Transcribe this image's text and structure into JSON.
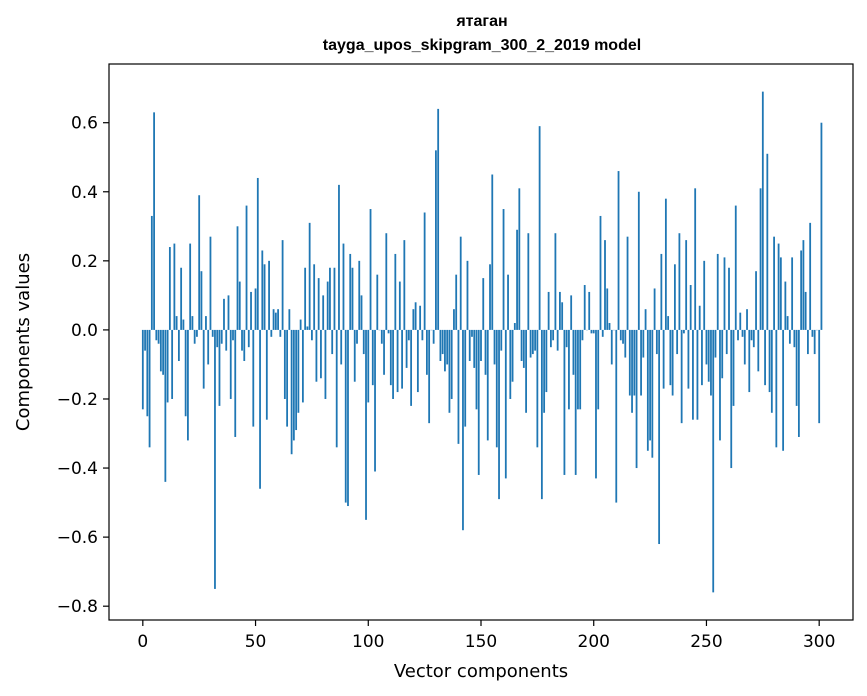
{
  "chart_data": {
    "type": "bar",
    "title": "ятаган",
    "subtitle": "tayga_upos_skipgram_300_2_2019 model",
    "xlabel": "Vector components",
    "ylabel": "Components values",
    "xlim": [
      -15,
      315
    ],
    "ylim": [
      -0.84,
      0.77
    ],
    "xticks": [
      0,
      50,
      100,
      150,
      200,
      250,
      300
    ],
    "xtick_labels": [
      "0",
      "50",
      "100",
      "150",
      "200",
      "250",
      "300"
    ],
    "yticks": [
      -0.8,
      -0.6,
      -0.4,
      -0.2,
      0.0,
      0.2,
      0.4,
      0.6
    ],
    "ytick_labels": [
      "−0.8",
      "−0.6",
      "−0.4",
      "−0.2",
      "0.0",
      "0.2",
      "0.4",
      "0.6"
    ],
    "bar_color": "#1f77b4",
    "values": [
      -0.23,
      -0.06,
      -0.25,
      -0.34,
      0.33,
      0.63,
      -0.03,
      -0.04,
      -0.12,
      -0.13,
      -0.44,
      -0.21,
      0.24,
      -0.2,
      0.25,
      0.04,
      -0.09,
      0.18,
      0.03,
      -0.25,
      -0.32,
      0.25,
      0.04,
      -0.04,
      -0.02,
      0.39,
      0.17,
      -0.17,
      0.04,
      -0.1,
      0.27,
      -0.02,
      -0.75,
      -0.05,
      -0.22,
      -0.04,
      0.09,
      -0.06,
      0.1,
      -0.2,
      -0.03,
      -0.31,
      0.3,
      0.14,
      -0.06,
      -0.09,
      0.36,
      -0.05,
      0.11,
      -0.28,
      0.12,
      0.44,
      -0.46,
      0.23,
      0.19,
      -0.26,
      0.2,
      -0.02,
      0.06,
      0.05,
      0.06,
      -0.02,
      0.26,
      -0.2,
      -0.28,
      0.06,
      -0.36,
      -0.32,
      -0.29,
      -0.24,
      0.03,
      -0.21,
      0.18,
      0.01,
      0.31,
      -0.03,
      0.19,
      -0.15,
      0.15,
      -0.14,
      0.1,
      -0.2,
      0.14,
      0.18,
      -0.07,
      0.18,
      -0.34,
      0.42,
      -0.1,
      0.25,
      -0.5,
      -0.51,
      0.22,
      0.18,
      -0.15,
      -0.04,
      0.2,
      0.1,
      -0.07,
      -0.55,
      -0.21,
      0.35,
      -0.16,
      -0.41,
      0.16,
      0.0,
      -0.04,
      -0.13,
      0.28,
      -0.01,
      -0.16,
      -0.2,
      0.22,
      -0.18,
      0.14,
      -0.17,
      0.26,
      -0.11,
      -0.03,
      -0.22,
      0.06,
      0.08,
      -0.18,
      0.07,
      -0.03,
      0.34,
      -0.13,
      -0.27,
      0.0,
      -0.04,
      0.52,
      0.64,
      -0.09,
      -0.07,
      -0.12,
      -0.1,
      -0.24,
      -0.2,
      0.06,
      0.16,
      -0.33,
      0.27,
      -0.58,
      -0.28,
      0.2,
      -0.09,
      -0.02,
      -0.11,
      -0.23,
      -0.42,
      -0.09,
      0.15,
      -0.13,
      -0.32,
      0.19,
      0.45,
      -0.1,
      -0.34,
      -0.49,
      -0.06,
      0.35,
      -0.43,
      0.16,
      -0.2,
      -0.15,
      0.02,
      0.29,
      0.41,
      -0.09,
      -0.11,
      -0.24,
      0.28,
      -0.08,
      -0.07,
      -0.06,
      -0.34,
      0.59,
      -0.49,
      -0.24,
      -0.18,
      0.11,
      -0.05,
      -0.03,
      0.28,
      -0.06,
      0.11,
      0.08,
      -0.42,
      -0.05,
      -0.23,
      0.1,
      -0.13,
      -0.42,
      -0.23,
      -0.23,
      -0.03,
      0.13,
      0.0,
      0.11,
      -0.01,
      -0.01,
      -0.43,
      -0.23,
      0.33,
      -0.02,
      0.26,
      0.12,
      0.02,
      -0.1,
      0.0,
      -0.5,
      0.46,
      -0.03,
      -0.04,
      -0.08,
      0.27,
      -0.19,
      -0.24,
      -0.19,
      -0.4,
      0.4,
      -0.19,
      -0.08,
      0.06,
      -0.35,
      -0.32,
      -0.37,
      0.12,
      -0.07,
      -0.62,
      0.22,
      -0.17,
      0.38,
      0.04,
      -0.16,
      -0.19,
      0.19,
      -0.07,
      0.28,
      -0.27,
      -0.01,
      0.26,
      -0.17,
      0.13,
      -0.26,
      0.41,
      -0.26,
      0.07,
      -0.16,
      0.2,
      -0.1,
      -0.15,
      -0.19,
      -0.76,
      -0.08,
      0.22,
      -0.32,
      -0.14,
      0.21,
      -0.07,
      0.18,
      -0.4,
      -0.22,
      0.36,
      -0.03,
      0.05,
      -0.02,
      -0.1,
      0.06,
      -0.18,
      -0.03,
      -0.05,
      0.17,
      -0.12,
      0.41,
      0.69,
      -0.16,
      0.51,
      -0.18,
      -0.24,
      0.27,
      -0.34,
      0.25,
      0.21,
      -0.35,
      0.14,
      0.04,
      -0.04,
      0.21,
      -0.05,
      -0.22,
      -0.31,
      0.23,
      0.26,
      0.11,
      -0.07,
      0.31,
      -0.02,
      -0.07,
      0.0,
      -0.27,
      0.6
    ]
  }
}
